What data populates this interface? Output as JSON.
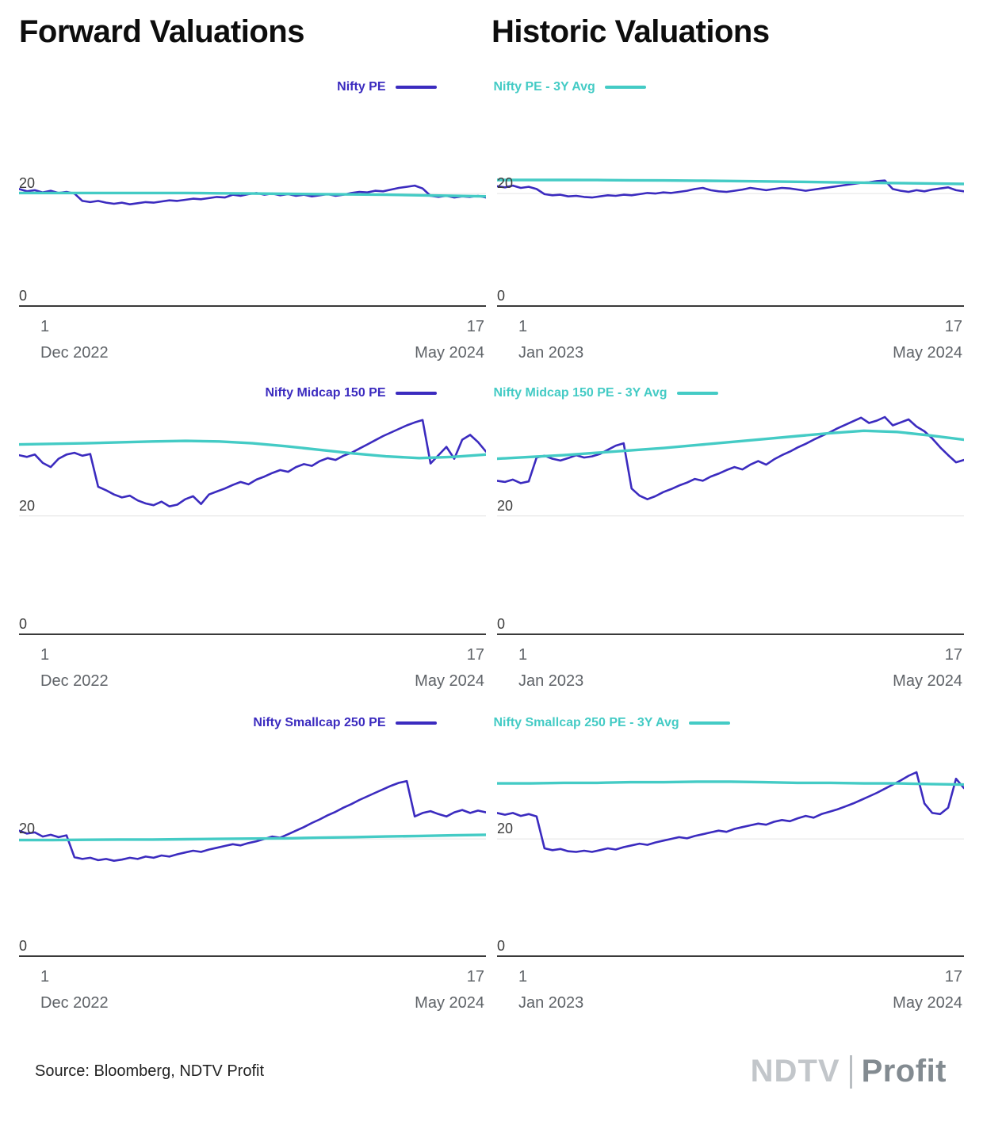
{
  "titles": {
    "forward": "Forward Valuations",
    "historic": "Historic Valuations"
  },
  "colors": {
    "purple": "#3b2bbf",
    "teal": "#44cbc5",
    "grid": "#e4e4e4",
    "axis": "#3a3a3a"
  },
  "footer": {
    "source": "Source: Bloomberg, NDTV Profit",
    "logo_ndtv": "NDTV",
    "logo_profit": "Profit"
  },
  "chart_data": [
    {
      "type": "line",
      "ylim": [
        0,
        35
      ],
      "yticks": [
        20,
        0
      ],
      "x_start": {
        "day": "1",
        "monthyear": "Dec 2022"
      },
      "x_end": {
        "day": "17",
        "monthyear": "May 2024"
      },
      "series": [
        {
          "name": "Nifty PE",
          "color": "#3b2bbf",
          "values": [
            20.8,
            20.4,
            20.6,
            20.2,
            20.5,
            20.1,
            20.3,
            20.0,
            18.7,
            18.5,
            18.7,
            18.4,
            18.2,
            18.4,
            18.1,
            18.3,
            18.5,
            18.4,
            18.6,
            18.8,
            18.7,
            18.9,
            19.1,
            19.0,
            19.2,
            19.4,
            19.3,
            19.8,
            19.6,
            19.9,
            20.1,
            19.8,
            20.0,
            19.7,
            19.9,
            19.6,
            19.8,
            19.5,
            19.7,
            19.9,
            19.6,
            19.8,
            20.1,
            20.3,
            20.2,
            20.5,
            20.4,
            20.7,
            21.0,
            21.2,
            21.4,
            20.9,
            19.6,
            19.4,
            19.6,
            19.3,
            19.5,
            19.4,
            19.6,
            19.3
          ]
        },
        {
          "name": "Nifty PE - 3Y Avg",
          "color": "#44cbc5",
          "values": [
            20.1,
            20.1,
            20.1,
            20.1,
            20.1,
            20.1,
            20.05,
            20.0,
            19.95,
            19.9,
            19.85,
            19.8,
            19.7,
            19.6,
            19.5
          ]
        }
      ]
    },
    {
      "type": "line",
      "ylim": [
        0,
        35
      ],
      "yticks": [
        20,
        0
      ],
      "x_start": {
        "day": "1",
        "monthyear": "Jan 2023"
      },
      "x_end": {
        "day": "17",
        "monthyear": "May 2024"
      },
      "series": [
        {
          "name": "Nifty PE",
          "color": "#3b2bbf",
          "values": [
            21.3,
            21.1,
            21.4,
            21.0,
            21.2,
            20.8,
            19.9,
            19.7,
            19.8,
            19.5,
            19.6,
            19.4,
            19.3,
            19.5,
            19.7,
            19.6,
            19.8,
            19.7,
            19.9,
            20.1,
            20.0,
            20.2,
            20.1,
            20.3,
            20.5,
            20.8,
            21.0,
            20.6,
            20.4,
            20.3,
            20.5,
            20.7,
            21.0,
            20.8,
            20.6,
            20.8,
            21.0,
            20.9,
            20.7,
            20.5,
            20.7,
            20.9,
            21.1,
            21.3,
            21.5,
            21.7,
            21.9,
            22.0,
            22.2,
            22.3,
            20.8,
            20.5,
            20.3,
            20.6,
            20.4,
            20.7,
            20.9,
            21.1,
            20.6,
            20.4
          ]
        },
        {
          "name": "Nifty PE - 3Y Avg",
          "color": "#44cbc5",
          "values": [
            22.4,
            22.4,
            22.4,
            22.38,
            22.35,
            22.32,
            22.28,
            22.22,
            22.15,
            22.08,
            22.0,
            21.92,
            21.85,
            21.78,
            21.7
          ]
        }
      ]
    },
    {
      "type": "line",
      "ylim": [
        0,
        37
      ],
      "yticks": [
        20,
        0
      ],
      "x_start": {
        "day": "1",
        "monthyear": "Dec 2022"
      },
      "x_end": {
        "day": "17",
        "monthyear": "May 2024"
      },
      "series": [
        {
          "name": "Nifty Midcap 150 PE",
          "color": "#3b2bbf",
          "values": [
            30.2,
            29.9,
            30.3,
            28.9,
            28.2,
            29.6,
            30.3,
            30.6,
            30.1,
            30.4,
            24.9,
            24.3,
            23.6,
            23.1,
            23.4,
            22.6,
            22.1,
            21.8,
            22.4,
            21.6,
            21.9,
            22.8,
            23.3,
            22.0,
            23.6,
            24.1,
            24.6,
            25.2,
            25.7,
            25.3,
            26.1,
            26.6,
            27.2,
            27.7,
            27.4,
            28.2,
            28.7,
            28.4,
            29.2,
            29.7,
            29.4,
            30.1,
            30.6,
            31.3,
            32.0,
            32.7,
            33.4,
            34.0,
            34.6,
            35.2,
            35.7,
            36.1,
            28.8,
            30.2,
            31.6,
            29.6,
            32.8,
            33.6,
            32.4,
            30.8
          ]
        },
        {
          "name": "Nifty Midcap 150 PE - 3Y Avg",
          "color": "#44cbc5",
          "values": [
            32.0,
            32.1,
            32.2,
            32.35,
            32.5,
            32.6,
            32.5,
            32.2,
            31.7,
            31.1,
            30.5,
            30.0,
            29.7,
            29.9,
            30.3
          ]
        }
      ]
    },
    {
      "type": "line",
      "ylim": [
        0,
        37
      ],
      "yticks": [
        20,
        0
      ],
      "x_start": {
        "day": "1",
        "monthyear": "Jan 2023"
      },
      "x_end": {
        "day": "17",
        "monthyear": "May 2024"
      },
      "series": [
        {
          "name": "Nifty Midcap 150 PE",
          "color": "#3b2bbf",
          "values": [
            25.9,
            25.7,
            26.1,
            25.5,
            25.8,
            29.8,
            30.1,
            29.6,
            29.3,
            29.7,
            30.2,
            29.8,
            30.0,
            30.4,
            31.1,
            31.8,
            32.2,
            24.6,
            23.4,
            22.8,
            23.3,
            24.0,
            24.5,
            25.1,
            25.6,
            26.2,
            25.9,
            26.6,
            27.1,
            27.7,
            28.2,
            27.8,
            28.6,
            29.2,
            28.6,
            29.5,
            30.2,
            30.8,
            31.5,
            32.1,
            32.8,
            33.4,
            34.0,
            34.7,
            35.3,
            35.9,
            36.5,
            35.6,
            36.0,
            36.6,
            35.2,
            35.7,
            36.2,
            35.0,
            34.2,
            33.0,
            31.5,
            30.2,
            29.0,
            29.4
          ]
        },
        {
          "name": "Nifty Midcap 150 PE - 3Y Avg",
          "color": "#44cbc5",
          "values": [
            29.6,
            29.9,
            30.2,
            30.6,
            31.0,
            31.4,
            31.9,
            32.4,
            32.9,
            33.4,
            33.9,
            34.3,
            34.1,
            33.5,
            32.8
          ]
        }
      ]
    },
    {
      "type": "line",
      "ylim": [
        0,
        36
      ],
      "yticks": [
        20,
        0
      ],
      "x_start": {
        "day": "1",
        "monthyear": "Dec 2022"
      },
      "x_end": {
        "day": "17",
        "monthyear": "May 2024"
      },
      "series": [
        {
          "name": "Nifty Smallcap 250 PE",
          "color": "#3b2bbf",
          "values": [
            21.4,
            20.9,
            21.1,
            20.4,
            20.7,
            20.3,
            20.6,
            16.9,
            16.6,
            16.8,
            16.4,
            16.6,
            16.3,
            16.5,
            16.8,
            16.6,
            17.0,
            16.8,
            17.2,
            17.0,
            17.4,
            17.7,
            18.0,
            17.8,
            18.2,
            18.5,
            18.8,
            19.1,
            18.9,
            19.3,
            19.6,
            20.0,
            20.4,
            20.2,
            20.8,
            21.4,
            22.0,
            22.7,
            23.3,
            24.0,
            24.6,
            25.3,
            25.9,
            26.6,
            27.2,
            27.8,
            28.4,
            29.0,
            29.5,
            29.8,
            23.8,
            24.4,
            24.7,
            24.2,
            23.8,
            24.5,
            24.9,
            24.4,
            24.8,
            24.5
          ]
        },
        {
          "name": "Nifty Smallcap 250 PE - 3Y Avg",
          "color": "#44cbc5",
          "values": [
            19.8,
            19.8,
            19.85,
            19.9,
            19.9,
            19.95,
            20.0,
            20.05,
            20.1,
            20.2,
            20.3,
            20.4,
            20.5,
            20.6,
            20.7
          ]
        }
      ]
    },
    {
      "type": "line",
      "ylim": [
        0,
        36
      ],
      "yticks": [
        20,
        0
      ],
      "x_start": {
        "day": "1",
        "monthyear": "Jan 2023"
      },
      "x_end": {
        "day": "17",
        "monthyear": "May 2024"
      },
      "series": [
        {
          "name": "Nifty Smallcap 250 PE",
          "color": "#3b2bbf",
          "values": [
            24.4,
            24.1,
            24.4,
            23.9,
            24.2,
            23.8,
            18.4,
            18.1,
            18.3,
            17.9,
            17.8,
            18.0,
            17.8,
            18.1,
            18.4,
            18.2,
            18.6,
            18.9,
            19.2,
            19.0,
            19.4,
            19.7,
            20.0,
            20.3,
            20.1,
            20.5,
            20.8,
            21.1,
            21.4,
            21.2,
            21.7,
            22.0,
            22.3,
            22.6,
            22.4,
            22.9,
            23.2,
            23.0,
            23.5,
            23.9,
            23.6,
            24.2,
            24.6,
            25.0,
            25.5,
            26.0,
            26.6,
            27.2,
            27.8,
            28.5,
            29.2,
            29.9,
            30.7,
            31.3,
            26.0,
            24.4,
            24.2,
            25.3,
            30.2,
            28.6
          ]
        },
        {
          "name": "Nifty Smallcap 250 PE - 3Y Avg",
          "color": "#44cbc5",
          "values": [
            29.4,
            29.4,
            29.5,
            29.5,
            29.6,
            29.6,
            29.7,
            29.7,
            29.6,
            29.5,
            29.5,
            29.4,
            29.4,
            29.3,
            29.2
          ]
        }
      ]
    }
  ]
}
